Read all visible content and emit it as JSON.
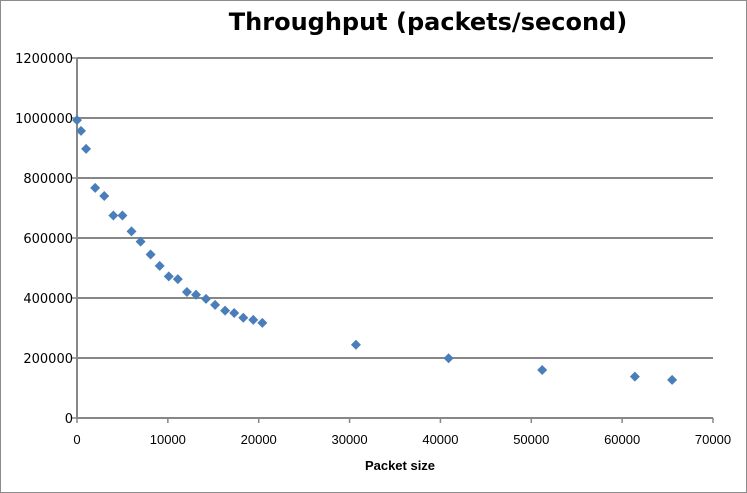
{
  "chart_data": {
    "type": "scatter",
    "title": "Throughput (packets/second)",
    "xlabel": "Packet size",
    "ylabel": "",
    "xlim": [
      0,
      70000
    ],
    "ylim": [
      0,
      1200000
    ],
    "xticks": [
      0,
      10000,
      20000,
      30000,
      40000,
      50000,
      60000,
      70000
    ],
    "yticks": [
      0,
      200000,
      400000,
      600000,
      800000,
      1000000,
      1200000
    ],
    "grid": {
      "horizontal": true,
      "vertical": false
    },
    "legend": null,
    "marker": "diamond",
    "series": [
      {
        "name": "Throughput",
        "color": "#4a7ebb",
        "points": [
          [
            0,
            993000
          ],
          [
            440,
            957000
          ],
          [
            1000,
            897000
          ],
          [
            2000,
            767000
          ],
          [
            3000,
            740000
          ],
          [
            4000,
            675000
          ],
          [
            5000,
            675000
          ],
          [
            6000,
            622000
          ],
          [
            7000,
            588000
          ],
          [
            8100,
            545000
          ],
          [
            9100,
            507000
          ],
          [
            10100,
            472000
          ],
          [
            11100,
            463000
          ],
          [
            12100,
            420000
          ],
          [
            13100,
            411000
          ],
          [
            14200,
            397000
          ],
          [
            15200,
            377000
          ],
          [
            16300,
            358000
          ],
          [
            17300,
            350000
          ],
          [
            18300,
            334000
          ],
          [
            19400,
            327000
          ],
          [
            20400,
            317000
          ],
          [
            30700,
            244000
          ],
          [
            40900,
            199000
          ],
          [
            51200,
            160000
          ],
          [
            61400,
            138000
          ],
          [
            65500,
            127000
          ]
        ]
      }
    ]
  }
}
